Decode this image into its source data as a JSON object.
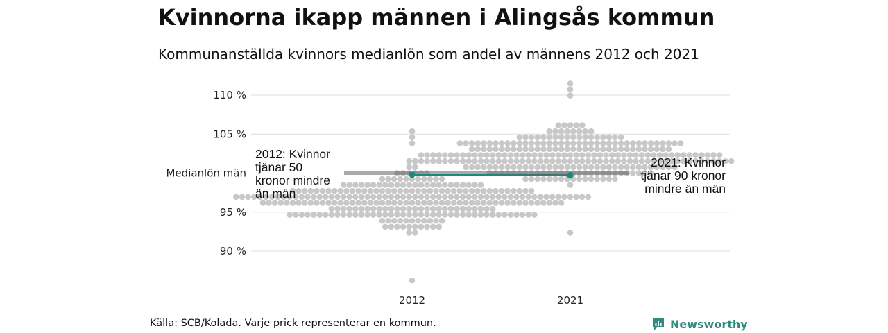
{
  "header": {
    "title": "Kvinnorna ikapp männen i Alingsås kommun",
    "subtitle": "Kommunanställda kvinnors medianlön som andel av männens 2012 och 2021"
  },
  "footer": {
    "source": "Källa: SCB/Kolada. Varje prick representerar en kommun.",
    "brand": "Newsworthy"
  },
  "colors": {
    "dot": "#c8c8c8",
    "accent": "#1a8a7c",
    "grid": "#dddddd",
    "brand": "#2e8b7e"
  },
  "chart_data": {
    "type": "scatter",
    "style": "beeswarm",
    "x_categories": [
      "2012",
      "2021"
    ],
    "y_ticks": [
      {
        "value": 90,
        "label": "90 %"
      },
      {
        "value": 95,
        "label": "95 %"
      },
      {
        "value": 100,
        "label": "Medianlön män"
      },
      {
        "value": 105,
        "label": "105 %"
      },
      {
        "value": 110,
        "label": "110 %"
      }
    ],
    "ylim": [
      86,
      112
    ],
    "reference_line": {
      "value": 100
    },
    "distributions": [
      {
        "category": "2012",
        "min": 86.5,
        "max": 105.5,
        "center": 96.5,
        "spread": 2.4,
        "count": 290
      },
      {
        "category": "2021",
        "min": 92.5,
        "max": 111.5,
        "center": 102.0,
        "spread": 2.3,
        "count": 290
      }
    ],
    "highlight": {
      "name": "Alingsås",
      "points": [
        {
          "x": "2012",
          "y": 99.8
        },
        {
          "x": "2021",
          "y": 99.7
        }
      ]
    },
    "annotations": [
      {
        "category": "2012",
        "lines": [
          "2012: Kvinnor",
          "tjänar 50",
          "kronor mindre",
          "än män"
        ],
        "side": "left"
      },
      {
        "category": "2021",
        "lines": [
          "2021: Kvinnor",
          "tjänar 90 kronor",
          "mindre än män"
        ],
        "side": "right"
      }
    ]
  }
}
